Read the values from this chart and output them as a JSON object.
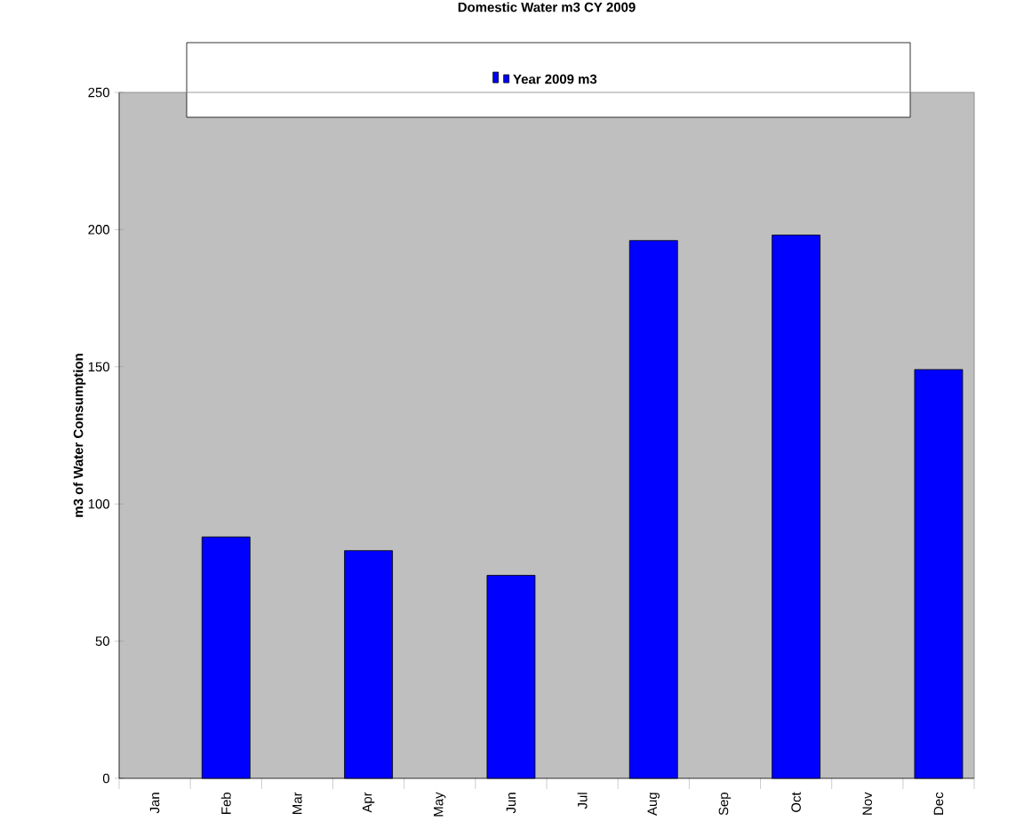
{
  "chart_data": {
    "type": "bar",
    "title": "Domestic Water m3 CY 2009",
    "ylabel": "m3 of Water Consumption",
    "categories": [
      "Jan",
      "Feb",
      "Mar",
      "Apr",
      "May",
      "Jun",
      "Jul",
      "Aug",
      "Sep",
      "Oct",
      "Nov",
      "Dec"
    ],
    "series": [
      {
        "name": "Year 2009 m3",
        "color": "#0000ff",
        "values": [
          null,
          88,
          null,
          83,
          null,
          74,
          null,
          196,
          null,
          198,
          null,
          149
        ]
      }
    ],
    "ylim": [
      0,
      250
    ],
    "yticks": [
      0,
      50,
      100,
      150,
      200,
      250
    ],
    "legend": "top",
    "grid": false
  }
}
